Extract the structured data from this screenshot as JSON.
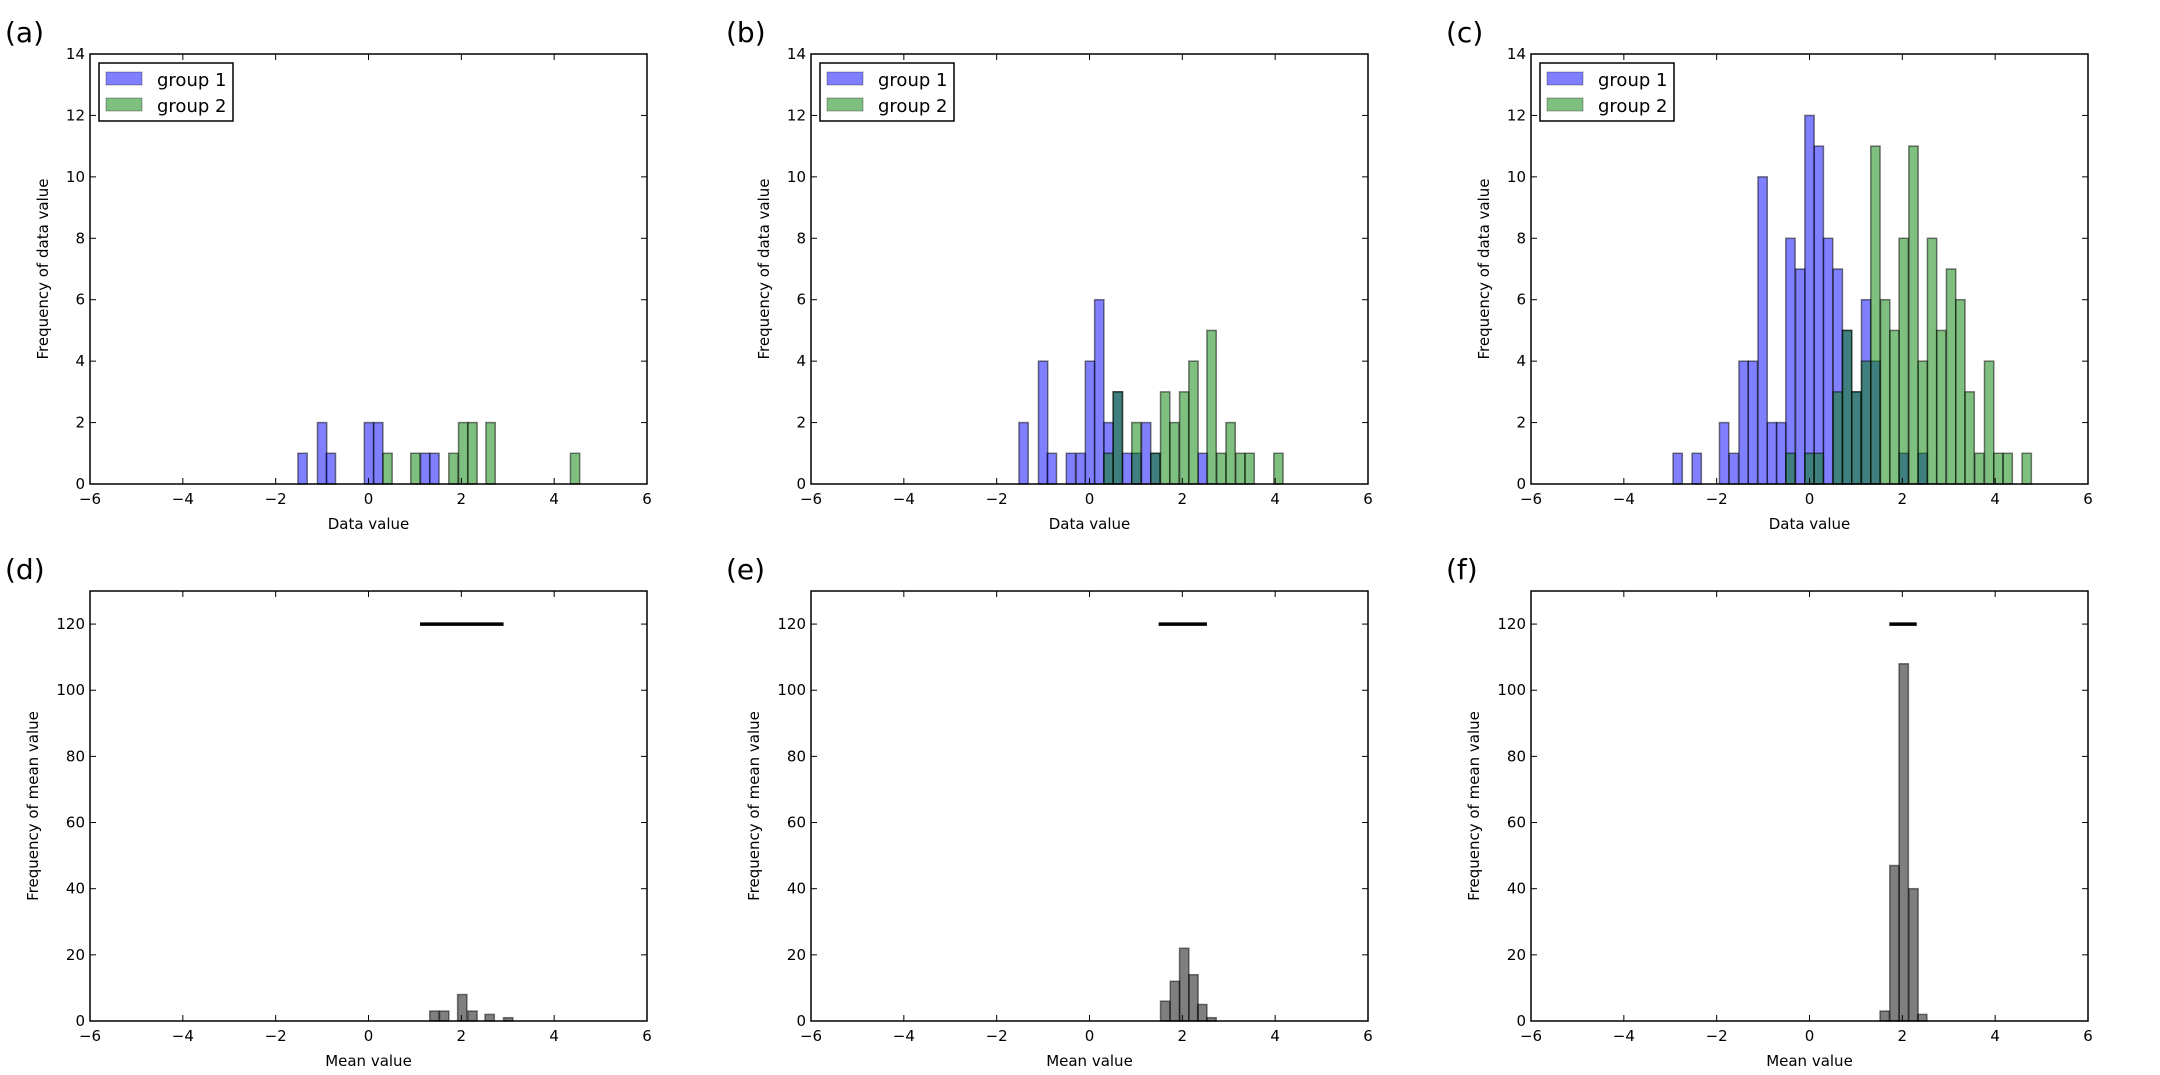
{
  "colors": {
    "group1": "#0000ff",
    "group2": "#008000",
    "mean": "#000000"
  },
  "chart_data": [
    {
      "panel": "(a)",
      "type": "bar",
      "xlabel": "Data value",
      "ylabel": "Frequency of data value",
      "xlim": [
        -6,
        6
      ],
      "ylim": [
        0,
        14
      ],
      "xticks": [
        -6,
        -4,
        -2,
        0,
        2,
        4,
        6
      ],
      "yticks": [
        0,
        2,
        4,
        6,
        8,
        10,
        12,
        14
      ],
      "bin_width": 0.2,
      "legend": "top-left",
      "series": [
        {
          "name": "group 1",
          "color_key": "group1",
          "bins": [
            [
              -1.52,
              1
            ],
            [
              -1.1,
              2
            ],
            [
              -0.91,
              1
            ],
            [
              -0.09,
              2
            ],
            [
              0.11,
              2
            ],
            [
              1.12,
              1
            ],
            [
              1.32,
              1
            ]
          ]
        },
        {
          "name": "group 2",
          "color_key": "group2",
          "bins": [
            [
              0.31,
              1
            ],
            [
              0.91,
              1
            ],
            [
              1.73,
              1
            ],
            [
              1.94,
              2
            ],
            [
              2.14,
              2
            ],
            [
              2.53,
              2
            ],
            [
              4.35,
              1
            ]
          ]
        }
      ]
    },
    {
      "panel": "(b)",
      "type": "bar",
      "xlabel": "Data value",
      "ylabel": "Frequency of data value",
      "xlim": [
        -6,
        6
      ],
      "ylim": [
        0,
        14
      ],
      "xticks": [
        -6,
        -4,
        -2,
        0,
        2,
        4,
        6
      ],
      "yticks": [
        0,
        2,
        4,
        6,
        8,
        10,
        12,
        14
      ],
      "bin_width": 0.2,
      "legend": "top-left",
      "series": [
        {
          "name": "group 1",
          "color_key": "group1",
          "bins": [
            [
              -1.52,
              2
            ],
            [
              -1.1,
              4
            ],
            [
              -0.91,
              1
            ],
            [
              -0.5,
              1
            ],
            [
              -0.29,
              1
            ],
            [
              -0.09,
              4
            ],
            [
              0.11,
              6
            ],
            [
              0.31,
              2
            ],
            [
              0.51,
              3
            ],
            [
              0.71,
              1
            ],
            [
              0.91,
              1
            ],
            [
              1.12,
              2
            ],
            [
              1.32,
              1
            ],
            [
              2.34,
              1
            ]
          ]
        },
        {
          "name": "group 2",
          "color_key": "group2",
          "bins": [
            [
              0.31,
              1
            ],
            [
              0.51,
              3
            ],
            [
              0.91,
              2
            ],
            [
              1.32,
              1
            ],
            [
              1.53,
              3
            ],
            [
              1.73,
              2
            ],
            [
              1.94,
              3
            ],
            [
              2.14,
              4
            ],
            [
              2.53,
              5
            ],
            [
              2.74,
              1
            ],
            [
              2.94,
              2
            ],
            [
              3.15,
              1
            ],
            [
              3.35,
              1
            ],
            [
              3.97,
              1
            ]
          ]
        }
      ]
    },
    {
      "panel": "(c)",
      "type": "bar",
      "xlabel": "Data value",
      "ylabel": "Frequency of data value",
      "xlim": [
        -6,
        6
      ],
      "ylim": [
        0,
        14
      ],
      "xticks": [
        -6,
        -4,
        -2,
        0,
        2,
        4,
        6
      ],
      "yticks": [
        0,
        2,
        4,
        6,
        8,
        10,
        12,
        14
      ],
      "bin_width": 0.2,
      "legend": "top-left",
      "series": [
        {
          "name": "group 1",
          "color_key": "group1",
          "bins": [
            [
              -2.94,
              1
            ],
            [
              -2.53,
              1
            ],
            [
              -1.94,
              2
            ],
            [
              -1.73,
              1
            ],
            [
              -1.52,
              4
            ],
            [
              -1.32,
              4
            ],
            [
              -1.11,
              10
            ],
            [
              -0.91,
              2
            ],
            [
              -0.71,
              2
            ],
            [
              -0.51,
              8
            ],
            [
              -0.3,
              7
            ],
            [
              -0.1,
              12
            ],
            [
              0.1,
              11
            ],
            [
              0.3,
              8
            ],
            [
              0.51,
              7
            ],
            [
              0.71,
              5
            ],
            [
              0.91,
              3
            ],
            [
              1.12,
              6
            ],
            [
              1.32,
              4
            ],
            [
              1.93,
              1
            ],
            [
              2.34,
              1
            ]
          ]
        },
        {
          "name": "group 2",
          "color_key": "group2",
          "bins": [
            [
              -0.51,
              1
            ],
            [
              -0.1,
              1
            ],
            [
              0.1,
              1
            ],
            [
              0.51,
              3
            ],
            [
              0.71,
              5
            ],
            [
              0.91,
              3
            ],
            [
              1.12,
              4
            ],
            [
              1.32,
              11
            ],
            [
              1.53,
              6
            ],
            [
              1.73,
              5
            ],
            [
              1.93,
              8
            ],
            [
              2.14,
              11
            ],
            [
              2.34,
              4
            ],
            [
              2.54,
              8
            ],
            [
              2.74,
              5
            ],
            [
              2.95,
              7
            ],
            [
              3.15,
              6
            ],
            [
              3.35,
              3
            ],
            [
              3.56,
              1
            ],
            [
              3.77,
              4
            ],
            [
              3.97,
              1
            ],
            [
              4.17,
              1
            ],
            [
              4.58,
              1
            ]
          ]
        }
      ]
    },
    {
      "panel": "(d)",
      "type": "bar",
      "xlabel": "Mean value",
      "ylabel": "Frequency of mean value",
      "xlim": [
        -6,
        6
      ],
      "ylim": [
        0,
        130
      ],
      "xticks": [
        -6,
        -4,
        -2,
        0,
        2,
        4,
        6
      ],
      "yticks": [
        0,
        20,
        40,
        60,
        80,
        100,
        120
      ],
      "bin_width": 0.2,
      "series": [
        {
          "color_key": "mean",
          "bins": [
            [
              1.32,
              3
            ],
            [
              1.53,
              3
            ],
            [
              1.92,
              8
            ],
            [
              2.14,
              3
            ],
            [
              2.51,
              2
            ],
            [
              2.91,
              1
            ]
          ]
        }
      ],
      "interval_line": {
        "y": 120,
        "x": [
          1.11,
          2.91
        ]
      }
    },
    {
      "panel": "(e)",
      "type": "bar",
      "xlabel": "Mean value",
      "ylabel": "Frequency of mean value",
      "xlim": [
        -6,
        6
      ],
      "ylim": [
        0,
        130
      ],
      "xticks": [
        -6,
        -4,
        -2,
        0,
        2,
        4,
        6
      ],
      "yticks": [
        0,
        20,
        40,
        60,
        80,
        100,
        120
      ],
      "bin_width": 0.2,
      "series": [
        {
          "color_key": "mean",
          "bins": [
            [
              1.53,
              6
            ],
            [
              1.74,
              12
            ],
            [
              1.94,
              22
            ],
            [
              2.14,
              14
            ],
            [
              2.33,
              5
            ],
            [
              2.53,
              1
            ]
          ]
        }
      ],
      "interval_line": {
        "y": 120,
        "x": [
          1.49,
          2.53
        ]
      }
    },
    {
      "panel": "(f)",
      "type": "bar",
      "xlabel": "Mean value",
      "ylabel": "Frequency of mean value",
      "xlim": [
        -6,
        6
      ],
      "ylim": [
        0,
        130
      ],
      "xticks": [
        -6,
        -4,
        -2,
        0,
        2,
        4,
        6
      ],
      "yticks": [
        0,
        20,
        40,
        60,
        80,
        100,
        120
      ],
      "bin_width": 0.2,
      "series": [
        {
          "color_key": "mean",
          "bins": [
            [
              1.52,
              3
            ],
            [
              1.73,
              47
            ],
            [
              1.93,
              108
            ],
            [
              2.14,
              40
            ],
            [
              2.33,
              2
            ]
          ]
        }
      ],
      "interval_line": {
        "y": 120,
        "x": [
          1.72,
          2.31
        ]
      }
    }
  ]
}
